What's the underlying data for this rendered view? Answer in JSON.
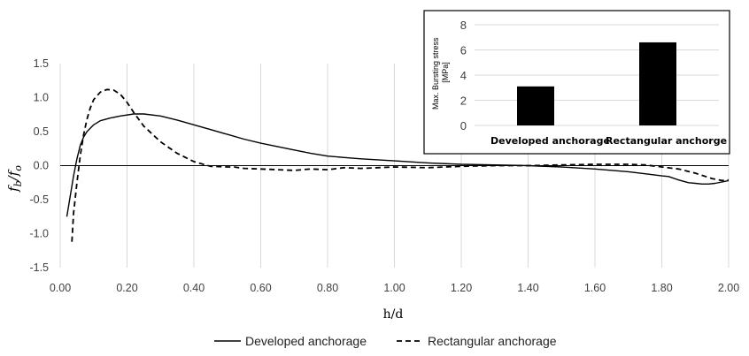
{
  "chart_data": [
    {
      "type": "line",
      "ylabel": "f_b/f_o",
      "ylabel_main": "f",
      "ylabel_sub1": "b",
      "ylabel_slash": "/",
      "ylabel_sub2": "o",
      "xlabel": "h/d",
      "xlim": [
        0,
        2.0
      ],
      "ylim": [
        -1.5,
        1.5
      ],
      "x_ticks": [
        "0.00",
        "0.20",
        "0.40",
        "0.60",
        "0.80",
        "1.00",
        "1.20",
        "1.40",
        "1.60",
        "1.80",
        "2.00"
      ],
      "y_ticks": [
        "1.5",
        "1.0",
        "0.5",
        "0.0",
        "-0.5",
        "-1.0",
        "-1.5"
      ],
      "grid": "vertical",
      "legend_position": "bottom",
      "series": [
        {
          "name": "Developed anchorage",
          "style": "solid",
          "x": [
            0.02,
            0.03,
            0.04,
            0.05,
            0.06,
            0.07,
            0.08,
            0.1,
            0.12,
            0.15,
            0.18,
            0.22,
            0.25,
            0.3,
            0.35,
            0.4,
            0.45,
            0.5,
            0.55,
            0.6,
            0.65,
            0.7,
            0.75,
            0.8,
            0.85,
            0.9,
            1.0,
            1.1,
            1.2,
            1.3,
            1.4,
            1.5,
            1.6,
            1.7,
            1.75,
            1.8,
            1.82,
            1.85,
            1.88,
            1.9,
            1.92,
            1.94,
            1.96,
            1.98,
            2.0
          ],
          "y": [
            -0.75,
            -0.45,
            -0.15,
            0.1,
            0.3,
            0.42,
            0.5,
            0.6,
            0.66,
            0.7,
            0.73,
            0.76,
            0.76,
            0.73,
            0.67,
            0.6,
            0.53,
            0.46,
            0.39,
            0.33,
            0.28,
            0.23,
            0.18,
            0.14,
            0.12,
            0.1,
            0.07,
            0.04,
            0.02,
            0.01,
            0.0,
            -0.02,
            -0.05,
            -0.09,
            -0.12,
            -0.15,
            -0.16,
            -0.21,
            -0.25,
            -0.26,
            -0.27,
            -0.27,
            -0.26,
            -0.24,
            -0.22
          ]
        },
        {
          "name": "Rectangular anchorage",
          "style": "dashed",
          "x": [
            0.035,
            0.04,
            0.05,
            0.06,
            0.07,
            0.08,
            0.09,
            0.1,
            0.12,
            0.14,
            0.16,
            0.18,
            0.2,
            0.22,
            0.25,
            0.3,
            0.35,
            0.4,
            0.45,
            0.5,
            0.52,
            0.55,
            0.6,
            0.65,
            0.7,
            0.75,
            0.8,
            0.85,
            0.9,
            1.0,
            1.1,
            1.2,
            1.3,
            1.4,
            1.5,
            1.6,
            1.7,
            1.75,
            1.8,
            1.85,
            1.9,
            1.95,
            1.98,
            2.0
          ],
          "y": [
            -1.12,
            -0.7,
            -0.25,
            0.15,
            0.45,
            0.68,
            0.85,
            0.97,
            1.08,
            1.12,
            1.11,
            1.05,
            0.93,
            0.78,
            0.58,
            0.35,
            0.18,
            0.06,
            -0.01,
            -0.02,
            -0.02,
            -0.04,
            -0.05,
            -0.06,
            -0.07,
            -0.05,
            -0.06,
            -0.03,
            -0.04,
            -0.02,
            -0.03,
            -0.01,
            0.0,
            0.0,
            0.01,
            0.02,
            0.02,
            0.01,
            -0.02,
            -0.05,
            -0.11,
            -0.19,
            -0.22,
            -0.21
          ]
        }
      ]
    },
    {
      "type": "bar",
      "ylabel": "Max. Bursting stress [MPa]",
      "ylabel_line1": "Max. Bursting stress",
      "ylabel_line2": "[MPa]",
      "categories": [
        "Developed anchorage",
        "Rectangular anchorge"
      ],
      "values": [
        3.1,
        6.6
      ],
      "ylim": [
        0,
        8
      ],
      "y_ticks": [
        "0",
        "2",
        "4",
        "6",
        "8"
      ],
      "bar_color": "#000000",
      "position": "top-right"
    }
  ]
}
